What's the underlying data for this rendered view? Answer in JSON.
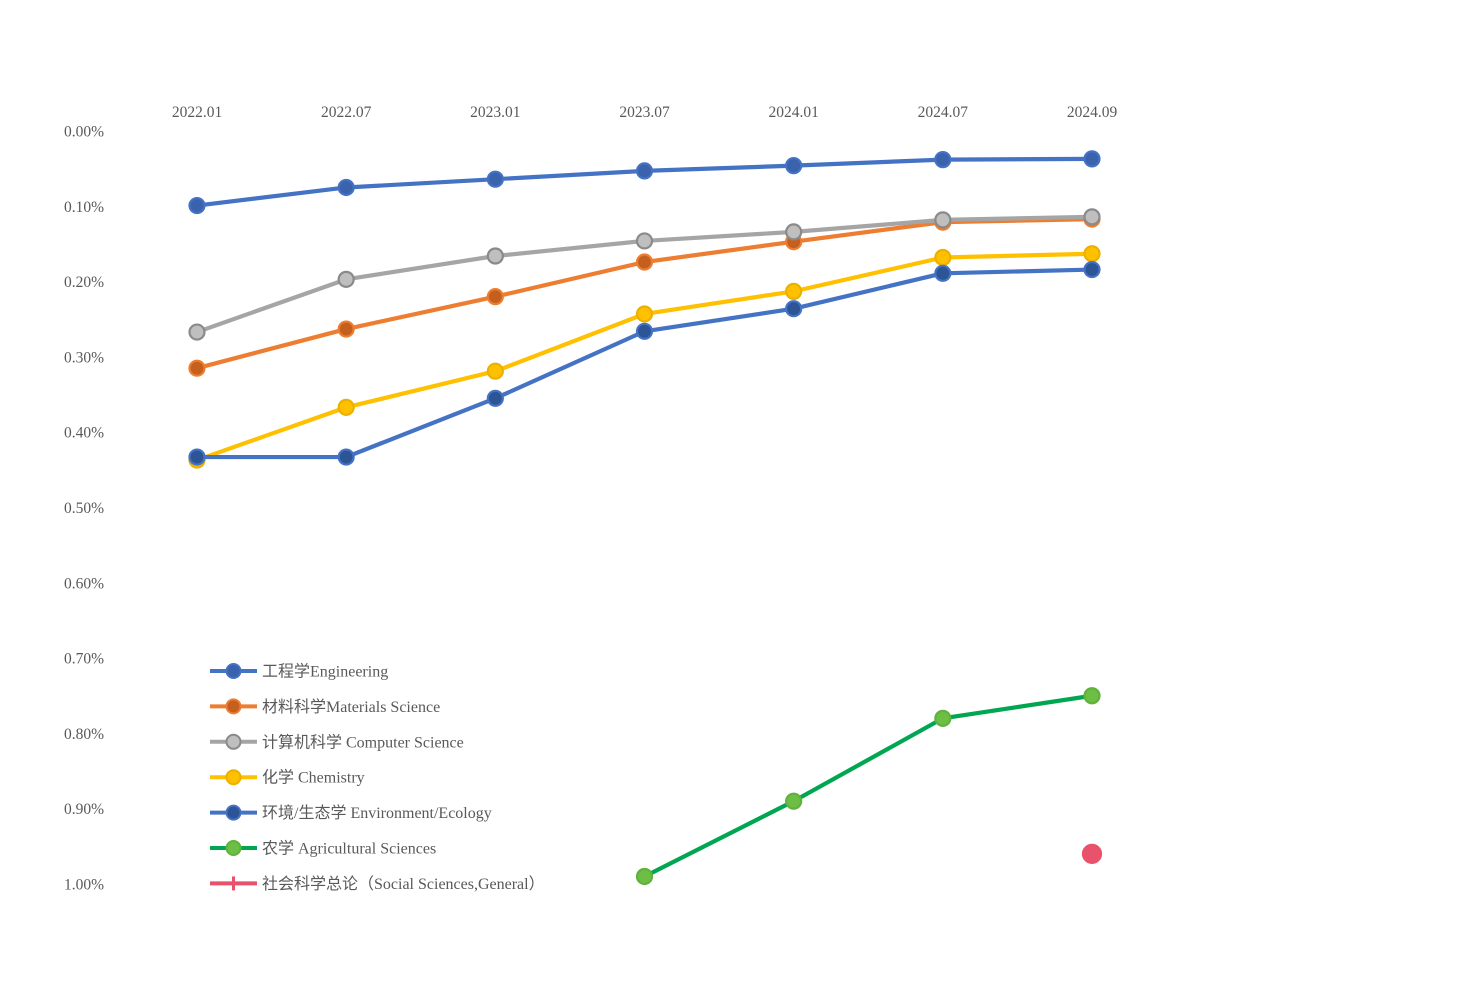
{
  "page": {
    "background_color": "#ffffff",
    "text_color": "#595959"
  },
  "chart_data": {
    "type": "line",
    "title": "",
    "grid": false,
    "categories": [
      "2022.01",
      "2022.07",
      "2023.01",
      "2023.07",
      "2024.01",
      "2024.07",
      "2024.09"
    ],
    "x_axis": {
      "position": "top",
      "tick_color": "#595959"
    },
    "y_axis": {
      "inverted": true,
      "min": 0.0,
      "max": 1.0,
      "step": 0.1,
      "unit": "%",
      "tick_color": "#595959",
      "ticks": [
        {
          "value": 0.0,
          "label": "0.00%"
        },
        {
          "value": 0.1,
          "label": "0.10%"
        },
        {
          "value": 0.2,
          "label": "0.20%"
        },
        {
          "value": 0.3,
          "label": "0.30%"
        },
        {
          "value": 0.4,
          "label": "0.40%"
        },
        {
          "value": 0.5,
          "label": "0.50%"
        },
        {
          "value": 0.6,
          "label": "0.60%"
        },
        {
          "value": 0.7,
          "label": "0.70%"
        },
        {
          "value": 0.8,
          "label": "0.80%"
        },
        {
          "value": 0.9,
          "label": "0.90%"
        },
        {
          "value": 1.0,
          "label": "1.00%"
        }
      ]
    },
    "legend": {
      "position": "inside-bottom-left",
      "marker_shapes": [
        "circle",
        "circle",
        "circle",
        "circle",
        "circle",
        "circle",
        "plus"
      ]
    },
    "series": [
      {
        "id": "engineering",
        "name": "工程学Engineering",
        "color": "#4472C4",
        "marker": "circle",
        "legend_marker": "circle",
        "marker_fill": "#3A62AD",
        "marker_stroke": "#4472C4",
        "marker_radius": 7.5,
        "values": [
          0.099,
          0.075,
          0.064,
          0.053,
          0.046,
          0.038,
          0.037
        ]
      },
      {
        "id": "materials-science",
        "name": "材料科学Materials Science",
        "color": "#ED7D31",
        "marker": "circle",
        "legend_marker": "circle",
        "marker_fill": "#C55F1E",
        "marker_stroke": "#ED7D31",
        "marker_radius": 7.5,
        "values": [
          0.315,
          0.263,
          0.22,
          0.174,
          0.147,
          0.121,
          0.117
        ]
      },
      {
        "id": "computer-science",
        "name": "计算机科学 Computer Science",
        "color": "#A5A5A5",
        "marker": "circle",
        "legend_marker": "circle",
        "marker_fill": "#BFBFBF",
        "marker_stroke": "#8A8A8A",
        "marker_radius": 7.5,
        "values": [
          0.267,
          0.197,
          0.166,
          0.146,
          0.134,
          0.118,
          0.114
        ]
      },
      {
        "id": "chemistry",
        "name": "化学 Chemistry",
        "color": "#FFC000",
        "marker": "circle",
        "legend_marker": "circle",
        "marker_fill": "#FFC000",
        "marker_stroke": "#ECB100",
        "marker_radius": 7.5,
        "values": [
          0.437,
          0.367,
          0.319,
          0.243,
          0.213,
          0.168,
          0.163
        ]
      },
      {
        "id": "environment-ecology",
        "name": "环境/生态学 Environment/Ecology",
        "color": "#4472C4",
        "marker": "circle",
        "legend_marker": "circle",
        "marker_fill": "#2D5494",
        "marker_stroke": "#4472C4",
        "marker_radius": 7.5,
        "values": [
          0.433,
          0.433,
          0.355,
          0.266,
          0.236,
          0.189,
          0.184
        ]
      },
      {
        "id": "agricultural-sciences",
        "name": "农学 Agricultural Sciences",
        "color": "#00A651",
        "marker": "circle",
        "legend_marker": "circle",
        "marker_fill": "#6CBE45",
        "marker_stroke": "#5FB23B",
        "marker_radius": 7.5,
        "values": [
          null,
          null,
          null,
          0.99,
          0.89,
          0.78,
          0.75
        ]
      },
      {
        "id": "social-sciences-general",
        "name": "社会科学总论（Social Sciences,General）",
        "color": "#E8536B",
        "marker": "circle",
        "legend_marker": "plus",
        "marker_fill": "#E8536B",
        "marker_stroke": "#E8536B",
        "marker_radius": 9,
        "values": [
          null,
          null,
          null,
          null,
          null,
          null,
          0.96
        ]
      }
    ]
  }
}
